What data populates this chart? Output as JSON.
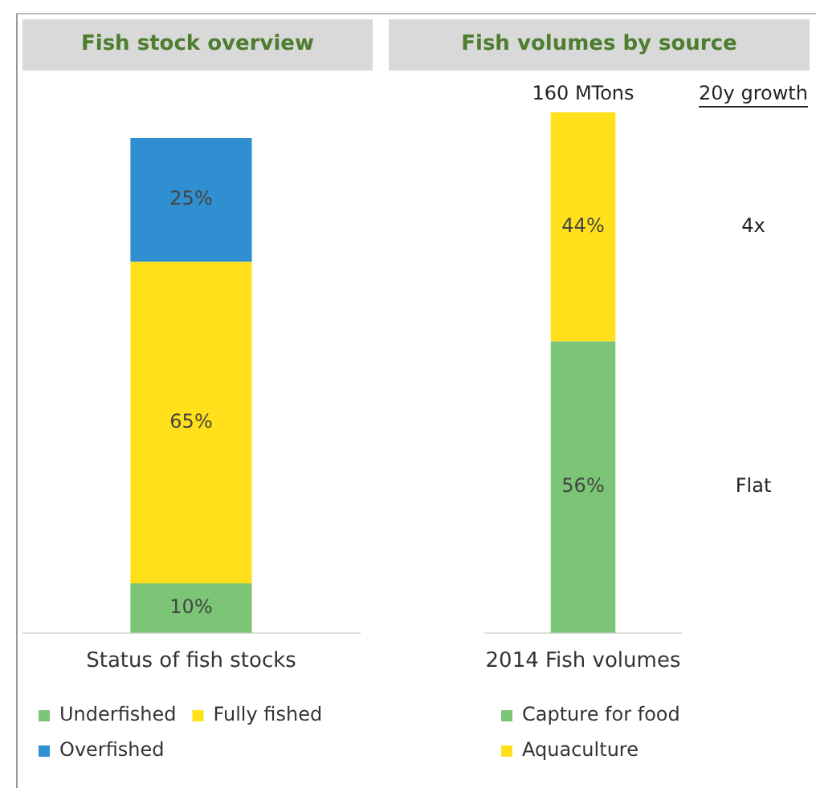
{
  "chart_data": [
    {
      "type": "bar",
      "title": "Fish stock overview",
      "categories": [
        "Status of fish stocks"
      ],
      "stacked": true,
      "ylim": [
        0,
        100
      ],
      "tick_labels": "x",
      "grid": false,
      "legend": "bottom",
      "series": [
        {
          "name": "Underfished",
          "color": "#7cc576",
          "values": [
            10
          ],
          "value_labels": [
            "10%"
          ]
        },
        {
          "name": "Fully fished",
          "color": "#ffe01a",
          "values": [
            65
          ],
          "value_labels": [
            "65%"
          ]
        },
        {
          "name": "Overfished",
          "color": "#2f8fd0",
          "values": [
            25
          ],
          "value_labels": [
            "25%"
          ]
        }
      ]
    },
    {
      "type": "bar",
      "title": "Fish volumes by source",
      "categories": [
        "2014 Fish volumes"
      ],
      "stacked": true,
      "ylim": [
        0,
        100
      ],
      "tick_labels": "x",
      "grid": false,
      "legend": "bottom",
      "annotations": [
        "160 MTons",
        "20y growth",
        "4x",
        "Flat"
      ],
      "series": [
        {
          "name": "Capture for food",
          "color": "#7cc576",
          "values": [
            56
          ],
          "value_labels": [
            "56%"
          ]
        },
        {
          "name": "Aquaculture",
          "color": "#ffe01a",
          "values": [
            44
          ],
          "value_labels": [
            "44%"
          ]
        }
      ]
    }
  ]
}
